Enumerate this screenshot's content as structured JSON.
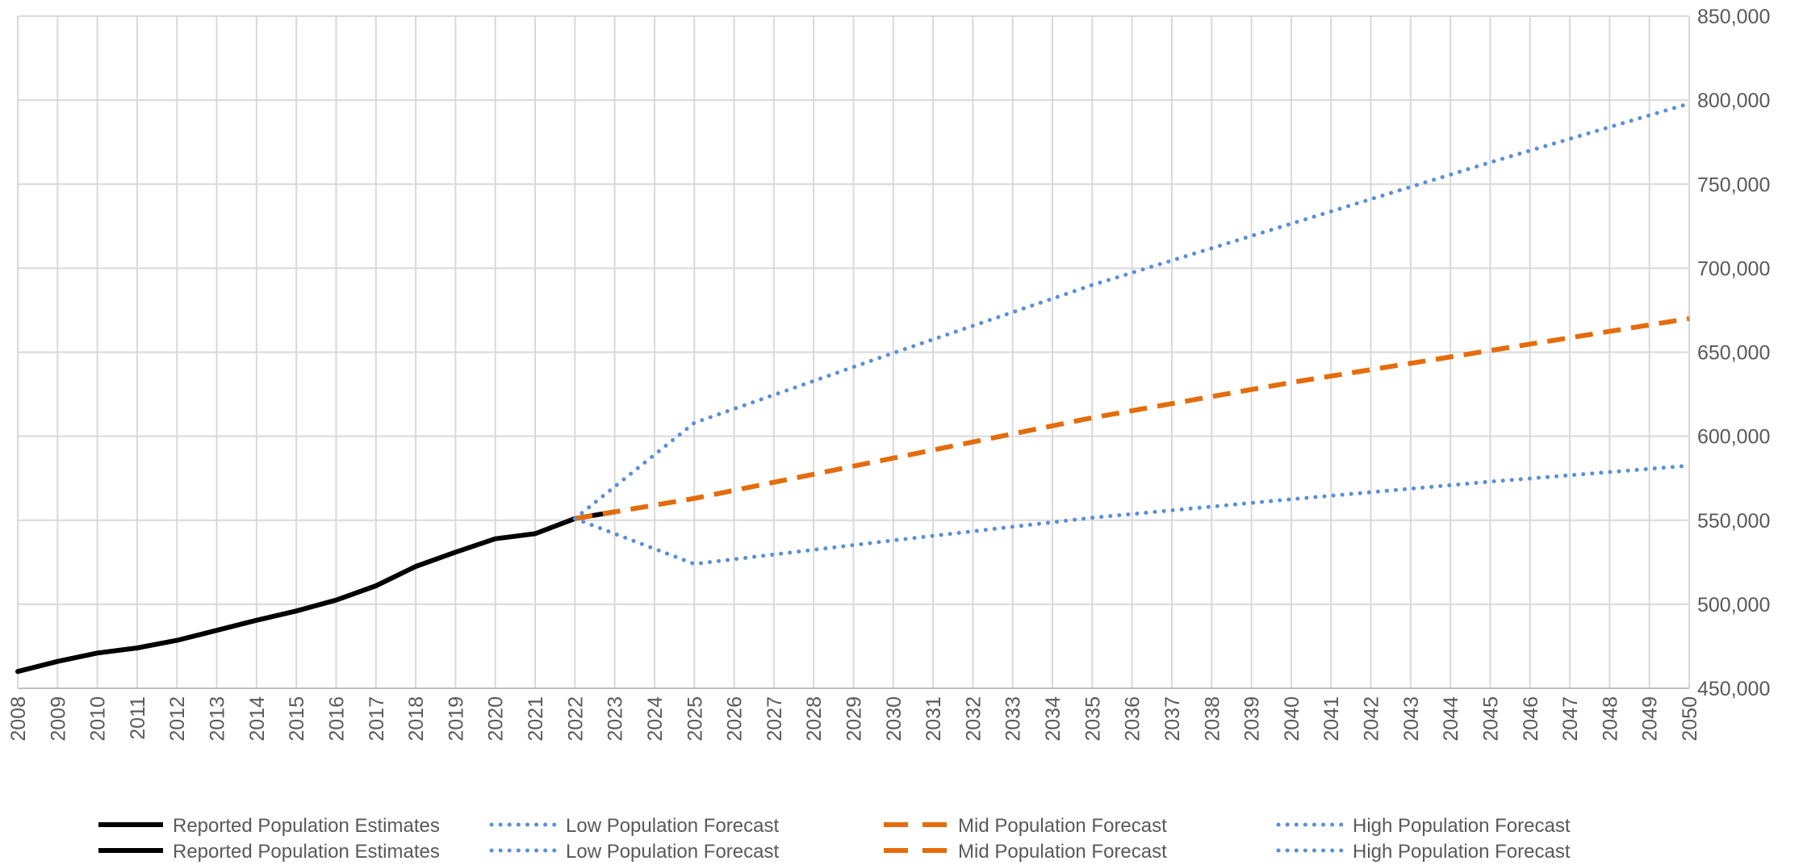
{
  "chart_data": {
    "type": "line",
    "title": "",
    "xlabel": "",
    "ylabel": "",
    "x": [
      2008,
      2009,
      2010,
      2011,
      2012,
      2013,
      2014,
      2015,
      2016,
      2017,
      2018,
      2019,
      2020,
      2021,
      2022,
      2023,
      2024,
      2025,
      2026,
      2027,
      2028,
      2029,
      2030,
      2031,
      2032,
      2033,
      2034,
      2035,
      2036,
      2037,
      2038,
      2039,
      2040,
      2041,
      2042,
      2043,
      2044,
      2045,
      2046,
      2047,
      2048,
      2049,
      2050
    ],
    "x_tick_labels": [
      "2008",
      "2009",
      "2010",
      "2011",
      "2012",
      "2013",
      "2014",
      "2015",
      "2016",
      "2017",
      "2018",
      "2019",
      "2020",
      "2021",
      "2022",
      "2023",
      "2024",
      "2025",
      "2026",
      "2027",
      "2028",
      "2029",
      "2030",
      "2031",
      "2032",
      "2033",
      "2034",
      "2035",
      "2036",
      "2037",
      "2038",
      "2039",
      "2040",
      "2041",
      "2042",
      "2043",
      "2044",
      "2045",
      "2046",
      "2047",
      "2048",
      "2049",
      "2050"
    ],
    "xlim": [
      2008,
      2050
    ],
    "ylim": [
      450000,
      850000
    ],
    "y_ticks": [
      450000,
      500000,
      550000,
      600000,
      650000,
      700000,
      750000,
      800000,
      850000
    ],
    "y_tick_labels": [
      "450,000",
      "500,000",
      "550,000",
      "600,000",
      "650,000",
      "700,000",
      "750,000",
      "800,000",
      "850,000"
    ],
    "y_axis_side": "right",
    "grid": true,
    "legend_position": "bottom",
    "series": [
      {
        "name": "Reported Population Estimates",
        "color": "#000000",
        "style": "solid",
        "points": [
          [
            2008,
            460000
          ],
          [
            2009,
            466000
          ],
          [
            2010,
            471000
          ],
          [
            2011,
            474000
          ],
          [
            2012,
            478500
          ],
          [
            2013,
            484500
          ],
          [
            2014,
            490500
          ],
          [
            2015,
            496000
          ],
          [
            2016,
            502500
          ],
          [
            2017,
            511000
          ],
          [
            2018,
            522500
          ],
          [
            2019,
            531000
          ],
          [
            2020,
            539000
          ],
          [
            2021,
            542000
          ],
          [
            2022,
            551000
          ],
          [
            2023,
            555000
          ]
        ]
      },
      {
        "name": "Low Population Forecast",
        "color": "#5b8fd6",
        "style": "dotted",
        "points": [
          [
            2022,
            551000
          ],
          [
            2025,
            524000
          ],
          [
            2030,
            538000
          ],
          [
            2035,
            551500
          ],
          [
            2040,
            562500
          ],
          [
            2045,
            573000
          ],
          [
            2050,
            582500
          ]
        ]
      },
      {
        "name": "Mid Population Forecast",
        "color": "#e46c0a",
        "style": "dashed",
        "points": [
          [
            2022,
            551000
          ],
          [
            2025,
            563000
          ],
          [
            2030,
            587000
          ],
          [
            2035,
            611000
          ],
          [
            2040,
            632000
          ],
          [
            2045,
            651000
          ],
          [
            2050,
            670000
          ]
        ]
      },
      {
        "name": "High Population Forecast",
        "color": "#5b8fd6",
        "style": "dotted",
        "points": [
          [
            2022,
            551000
          ],
          [
            2025,
            608000
          ],
          [
            2030,
            649500
          ],
          [
            2035,
            690000
          ],
          [
            2040,
            726500
          ],
          [
            2045,
            763000
          ],
          [
            2050,
            798000
          ]
        ]
      }
    ],
    "legend_entries": [
      {
        "name": "Reported Population Estimates",
        "color": "#000000",
        "style": "solid"
      },
      {
        "name": "Low Population Forecast",
        "color": "#5b8fd6",
        "style": "dotted"
      },
      {
        "name": "Mid Population Forecast",
        "color": "#e46c0a",
        "style": "dashed"
      },
      {
        "name": "High Population Forecast",
        "color": "#5b8fd6",
        "style": "dotted"
      },
      {
        "name": "Reported Population Estimates",
        "color": "#000000",
        "style": "solid"
      },
      {
        "name": "Low Population Forecast",
        "color": "#5b8fd6",
        "style": "dotted"
      },
      {
        "name": "Mid Population Forecast",
        "color": "#e46c0a",
        "style": "dashed"
      },
      {
        "name": "High Population Forecast",
        "color": "#5b8fd6",
        "style": "dotted"
      }
    ],
    "colors": {
      "grid": "#d9d9d9",
      "axis": "#bfbfbf",
      "text": "#595959"
    }
  }
}
